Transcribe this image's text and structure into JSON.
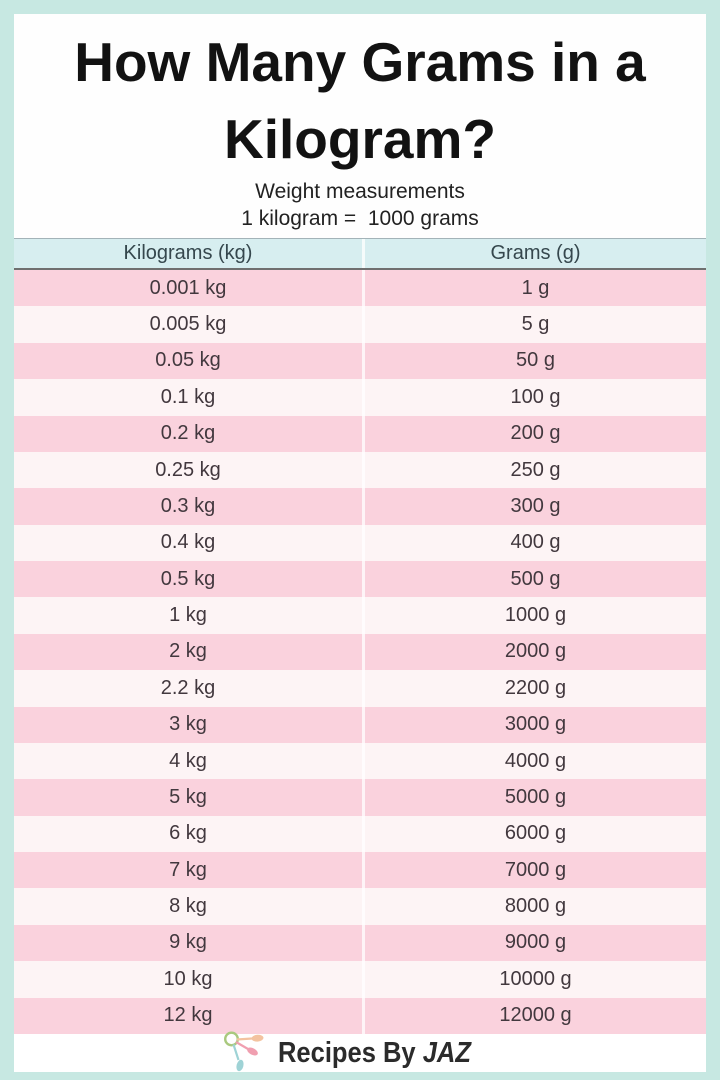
{
  "page": {
    "title_line1": "How Many Grams in a",
    "title_line2": "Kilogram?",
    "subtitle": "Weight measurements",
    "equation": "1 kilogram =  1000 grams"
  },
  "colors": {
    "frame_mint": "#c7e8e2",
    "header_teal": "#d7eef0",
    "row_pink": "#fad2dd",
    "row_light": "#fdf4f5",
    "title_text": "#121212",
    "cell_text": "#42383e",
    "brand_text": "#2b2b2b",
    "logo_ring_green": "#a9c97e",
    "logo_spoon_peach": "#f3c3a0",
    "logo_spoon_pink": "#f09fb0",
    "logo_spoon_teal": "#9fd3d6"
  },
  "table": {
    "columns": [
      "Kilograms (kg)",
      "Grams (g)"
    ],
    "rows": [
      [
        "0.001 kg",
        "1 g"
      ],
      [
        "0.005 kg",
        "5 g"
      ],
      [
        "0.05 kg",
        "50 g"
      ],
      [
        "0.1 kg",
        "100 g"
      ],
      [
        "0.2 kg",
        "200 g"
      ],
      [
        "0.25 kg",
        "250 g"
      ],
      [
        "0.3 kg",
        "300 g"
      ],
      [
        "0.4 kg",
        "400 g"
      ],
      [
        "0.5 kg",
        "500 g"
      ],
      [
        "1 kg",
        "1000 g"
      ],
      [
        "2 kg",
        "2000 g"
      ],
      [
        "2.2 kg",
        "2200 g"
      ],
      [
        "3 kg",
        "3000 g"
      ],
      [
        "4 kg",
        "4000 g"
      ],
      [
        "5 kg",
        "5000 g"
      ],
      [
        "6 kg",
        "6000 g"
      ],
      [
        "7 kg",
        "7000 g"
      ],
      [
        "8 kg",
        "8000 g"
      ],
      [
        "9 kg",
        "9000 g"
      ],
      [
        "10 kg",
        "10000 g"
      ],
      [
        "12 kg",
        "12000 g"
      ]
    ]
  },
  "footer": {
    "brand_prefix": "Recipes By ",
    "brand_name": "JAZ",
    "logo_icon": "measuring-spoons-icon"
  },
  "chart_data": {
    "type": "table",
    "title": "How Many Grams in a Kilogram?",
    "subtitle": "Weight measurements — 1 kilogram = 1000 grams",
    "columns": [
      "Kilograms (kg)",
      "Grams (g)"
    ],
    "kilograms": [
      0.001,
      0.005,
      0.05,
      0.1,
      0.2,
      0.25,
      0.3,
      0.4,
      0.5,
      1,
      2,
      2.2,
      3,
      4,
      5,
      6,
      7,
      8,
      9,
      10,
      12
    ],
    "grams": [
      1,
      5,
      50,
      100,
      200,
      250,
      300,
      400,
      500,
      1000,
      2000,
      2200,
      3000,
      4000,
      5000,
      6000,
      7000,
      8000,
      9000,
      10000,
      12000
    ]
  }
}
